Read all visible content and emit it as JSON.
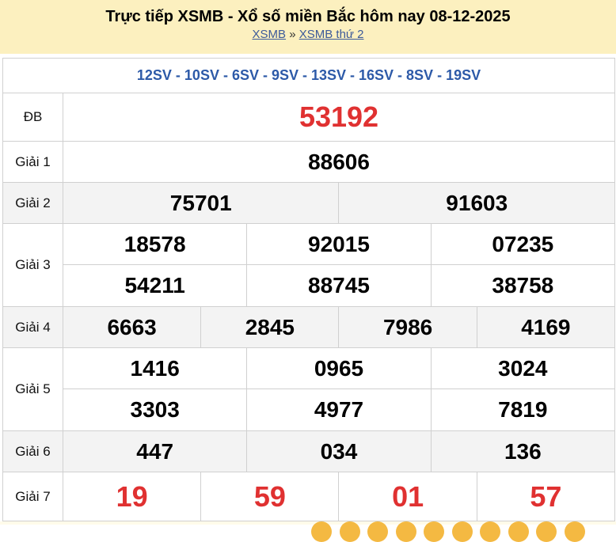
{
  "header": {
    "title": "Trực tiếp XSMB - Xổ số miền Bắc hôm nay 08-12-2025",
    "crumbs": [
      "XSMB",
      "XSMB thứ 2"
    ],
    "sep": "»"
  },
  "codes": "12SV - 10SV - 6SV - 9SV - 13SV - 16SV - 8SV - 19SV",
  "prizes": {
    "db": {
      "label": "ĐB",
      "nums": [
        "53192"
      ]
    },
    "g1": {
      "label": "Giải 1",
      "nums": [
        "88606"
      ]
    },
    "g2": {
      "label": "Giải 2",
      "nums": [
        "75701",
        "91603"
      ]
    },
    "g3": {
      "label": "Giải 3",
      "nums": [
        "18578",
        "92015",
        "07235",
        "54211",
        "88745",
        "38758"
      ]
    },
    "g4": {
      "label": "Giải 4",
      "nums": [
        "6663",
        "2845",
        "7986",
        "4169"
      ]
    },
    "g5": {
      "label": "Giải 5",
      "nums": [
        "1416",
        "0965",
        "3024",
        "3303",
        "4977",
        "7819"
      ]
    },
    "g6": {
      "label": "Giải 6",
      "nums": [
        "447",
        "034",
        "136"
      ]
    },
    "g7": {
      "label": "Giải 7",
      "nums": [
        "19",
        "59",
        "01",
        "57"
      ]
    }
  },
  "colors": {
    "header_bg": "#fcf0bf",
    "code": "#2d5aa8",
    "special": "#e03131"
  }
}
